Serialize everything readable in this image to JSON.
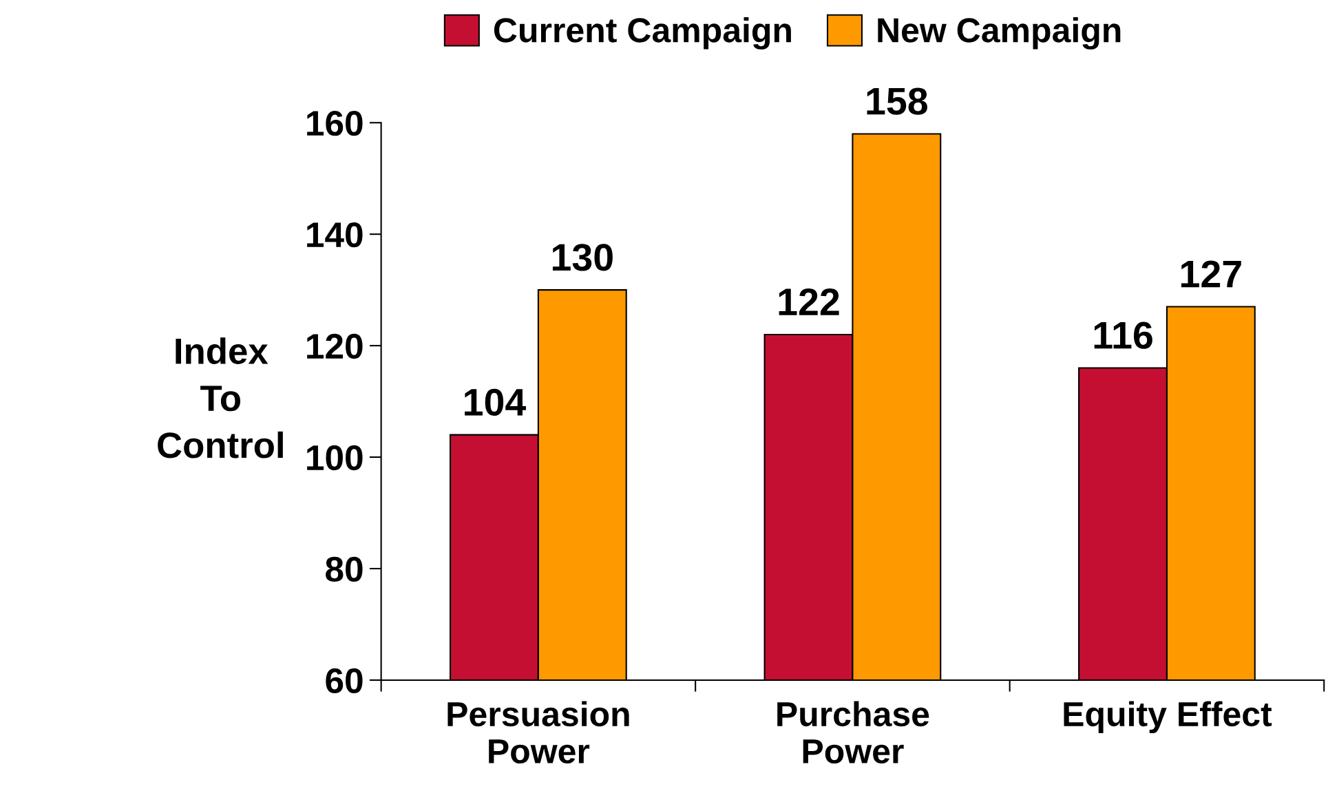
{
  "chart_data": {
    "type": "bar",
    "ylabel": "Index\nTo\nControl",
    "categories": [
      "Persuasion\nPower",
      "Purchase\nPower",
      "Equity Effect"
    ],
    "series": [
      {
        "name": "Current Campaign",
        "color": "#c50f32",
        "values": [
          104,
          122,
          116
        ]
      },
      {
        "name": "New Campaign",
        "color": "#ff9900",
        "values": [
          130,
          158,
          127
        ]
      }
    ],
    "ylim": [
      60,
      160
    ],
    "yticks": [
      60,
      80,
      100,
      120,
      140,
      160
    ],
    "data_labels": true,
    "legend": "top",
    "grid": false
  }
}
